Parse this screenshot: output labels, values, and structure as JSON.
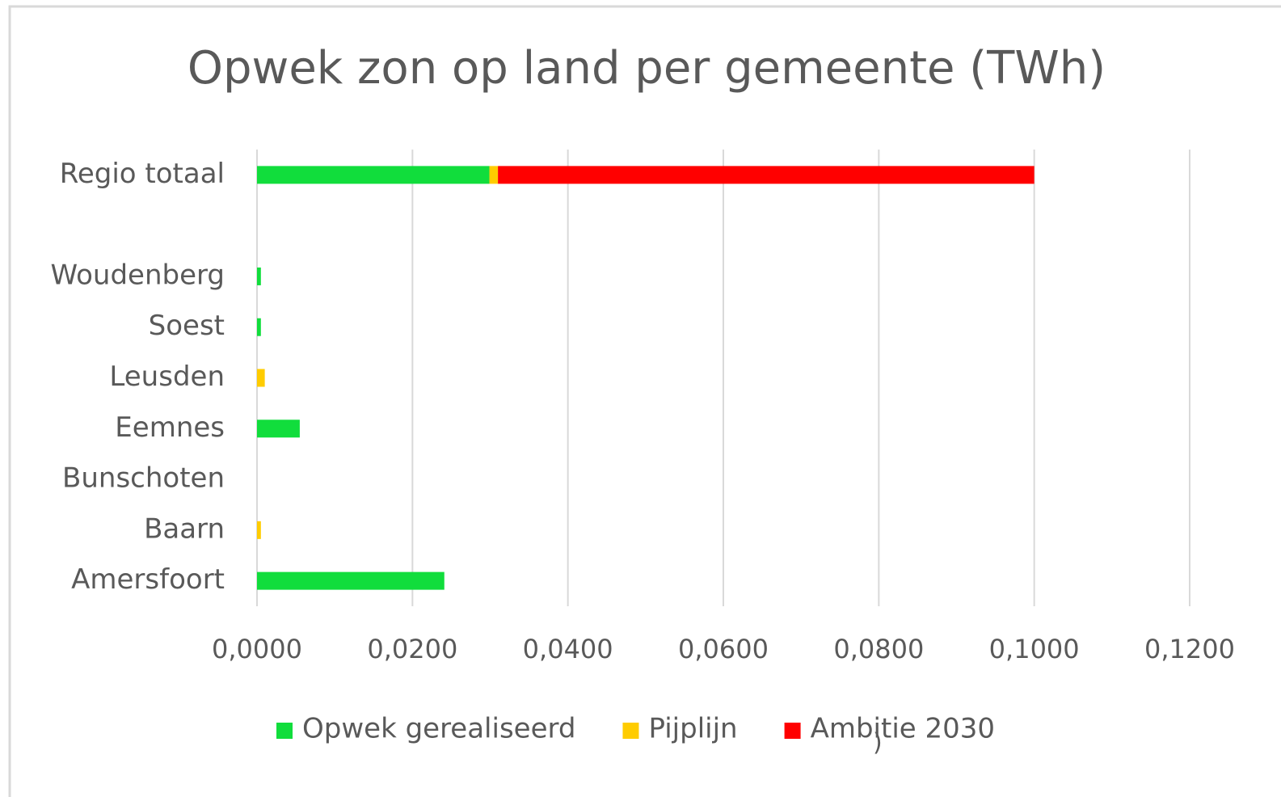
{
  "chart_data": {
    "type": "stacked-barh",
    "title": "Opwek zon op land per gemeente (TWh)",
    "categories": [
      "Regio totaal",
      null,
      "Woudenberg",
      "Soest",
      "Leusden",
      "Eemnes",
      "Bunschoten",
      "Baarn",
      "Amersfoort"
    ],
    "series": [
      {
        "name": "Opwek gerealiseerd",
        "color": "#11dd3c",
        "values": [
          0.0299,
          null,
          0.0005,
          0.0005,
          0,
          0.0055,
          0,
          0,
          0.0241
        ]
      },
      {
        "name": "Pijplijn",
        "color": "#ffcc00",
        "values": [
          0.0011,
          null,
          0,
          0,
          0.001,
          0,
          0,
          0.0005,
          0
        ]
      },
      {
        "name": "Ambitie 2030",
        "color": "#ff0000",
        "values": [
          0.069,
          null,
          0,
          0,
          0,
          0,
          0,
          0,
          0
        ]
      }
    ],
    "xlim": [
      0,
      0.12
    ],
    "xticks": [
      {
        "value": 0,
        "label": "0,0000"
      },
      {
        "value": 0.02,
        "label": "0,0200"
      },
      {
        "value": 0.04,
        "label": "0,0400"
      },
      {
        "value": 0.06,
        "label": "0,0600"
      },
      {
        "value": 0.08,
        "label": "0,0800"
      },
      {
        "value": 0.1,
        "label": "0,1000"
      },
      {
        "value": 0.12,
        "label": "0,1200"
      }
    ],
    "grid": true,
    "legend": "bottom",
    "annotation": ")"
  }
}
